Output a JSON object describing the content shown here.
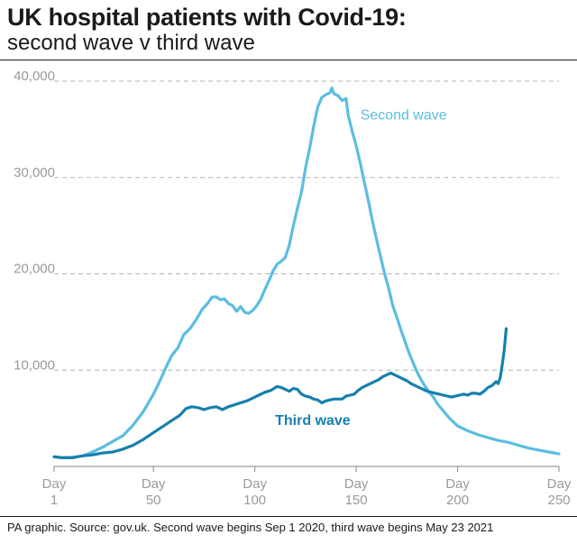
{
  "title": "UK hospital patients with Covid-19:",
  "subtitle": "second wave v third wave",
  "footnote": "PA graphic. Source: gov.uk. Second wave begins Sep 1 2020, third wave begins May 23 2021",
  "colors": {
    "second_wave": "#5bbde0",
    "third_wave": "#1680ad",
    "grid": "#b5b5b5",
    "axis": "#9a9a9a"
  },
  "chart_data": {
    "type": "line",
    "title": "UK hospital patients with Covid-19:",
    "subtitle": "second wave v third wave",
    "xlabel": "",
    "ylabel": "",
    "xlim": [
      1,
      250
    ],
    "ylim": [
      0,
      40000
    ],
    "grid": "horizontal dashed",
    "y_ticks": [
      {
        "value": 10000,
        "label": "10,000"
      },
      {
        "value": 20000,
        "label": "20,000"
      },
      {
        "value": 30000,
        "label": "30,000"
      },
      {
        "value": 40000,
        "label": "40,000"
      }
    ],
    "x_ticks": [
      {
        "value": 1,
        "line1": "Day",
        "line2": "1"
      },
      {
        "value": 50,
        "line1": "Day",
        "line2": "50"
      },
      {
        "value": 100,
        "line1": "Day",
        "line2": "100"
      },
      {
        "value": 150,
        "line1": "Day",
        "line2": "150"
      },
      {
        "value": 200,
        "line1": "Day",
        "line2": "200"
      },
      {
        "value": 250,
        "line1": "Day",
        "line2": "250"
      }
    ],
    "series": [
      {
        "name": "Second wave",
        "label_at": [
          152,
          36000
        ],
        "points": [
          [
            1,
            1000
          ],
          [
            5,
            900
          ],
          [
            10,
            950
          ],
          [
            15,
            1100
          ],
          [
            20,
            1500
          ],
          [
            25,
            2000
          ],
          [
            30,
            2600
          ],
          [
            35,
            3200
          ],
          [
            40,
            4300
          ],
          [
            45,
            5700
          ],
          [
            50,
            7500
          ],
          [
            53,
            8800
          ],
          [
            56,
            10200
          ],
          [
            59,
            11500
          ],
          [
            62,
            12300
          ],
          [
            65,
            13700
          ],
          [
            68,
            14300
          ],
          [
            71,
            15200
          ],
          [
            74,
            16300
          ],
          [
            77,
            17000
          ],
          [
            79,
            17600
          ],
          [
            81,
            17600
          ],
          [
            83,
            17300
          ],
          [
            85,
            17400
          ],
          [
            87,
            16900
          ],
          [
            89,
            16700
          ],
          [
            91,
            16100
          ],
          [
            93,
            16600
          ],
          [
            95,
            16000
          ],
          [
            97,
            15900
          ],
          [
            99,
            16200
          ],
          [
            101,
            16700
          ],
          [
            103,
            17400
          ],
          [
            105,
            18400
          ],
          [
            107,
            19300
          ],
          [
            109,
            20300
          ],
          [
            111,
            21000
          ],
          [
            113,
            21300
          ],
          [
            115,
            21700
          ],
          [
            117,
            23000
          ],
          [
            119,
            25000
          ],
          [
            121,
            26800
          ],
          [
            123,
            28500
          ],
          [
            125,
            31000
          ],
          [
            127,
            33000
          ],
          [
            129,
            35300
          ],
          [
            131,
            37300
          ],
          [
            133,
            38300
          ],
          [
            135,
            38600
          ],
          [
            137,
            38800
          ],
          [
            138,
            39300
          ],
          [
            139,
            38700
          ],
          [
            141,
            38500
          ],
          [
            143,
            38000
          ],
          [
            145,
            38200
          ],
          [
            146,
            36500
          ],
          [
            148,
            34800
          ],
          [
            150,
            33300
          ],
          [
            152,
            31500
          ],
          [
            154,
            29500
          ],
          [
            156,
            27600
          ],
          [
            158,
            25500
          ],
          [
            160,
            23600
          ],
          [
            162,
            21800
          ],
          [
            164,
            20000
          ],
          [
            166,
            18500
          ],
          [
            168,
            16700
          ],
          [
            170,
            15500
          ],
          [
            172,
            14200
          ],
          [
            174,
            13000
          ],
          [
            176,
            11800
          ],
          [
            178,
            10800
          ],
          [
            180,
            9800
          ],
          [
            182,
            9000
          ],
          [
            184,
            8300
          ],
          [
            186,
            7700
          ],
          [
            188,
            7200
          ],
          [
            190,
            6500
          ],
          [
            192,
            6000
          ],
          [
            194,
            5500
          ],
          [
            196,
            5000
          ],
          [
            198,
            4600
          ],
          [
            200,
            4200
          ],
          [
            205,
            3700
          ],
          [
            210,
            3300
          ],
          [
            215,
            3000
          ],
          [
            220,
            2700
          ],
          [
            225,
            2500
          ],
          [
            230,
            2200
          ],
          [
            235,
            1900
          ],
          [
            240,
            1700
          ],
          [
            245,
            1500
          ],
          [
            250,
            1300
          ]
        ]
      },
      {
        "name": "Third wave",
        "label_at": [
          110,
          4300
        ],
        "points": [
          [
            1,
            1000
          ],
          [
            5,
            900
          ],
          [
            10,
            900
          ],
          [
            15,
            1100
          ],
          [
            20,
            1200
          ],
          [
            25,
            1400
          ],
          [
            30,
            1500
          ],
          [
            35,
            1800
          ],
          [
            40,
            2200
          ],
          [
            45,
            2800
          ],
          [
            50,
            3500
          ],
          [
            55,
            4200
          ],
          [
            60,
            4900
          ],
          [
            63,
            5300
          ],
          [
            66,
            6000
          ],
          [
            69,
            6200
          ],
          [
            72,
            6100
          ],
          [
            75,
            5900
          ],
          [
            78,
            6100
          ],
          [
            81,
            6200
          ],
          [
            84,
            5900
          ],
          [
            87,
            6200
          ],
          [
            90,
            6400
          ],
          [
            93,
            6600
          ],
          [
            96,
            6800
          ],
          [
            99,
            7100
          ],
          [
            102,
            7400
          ],
          [
            105,
            7700
          ],
          [
            108,
            7900
          ],
          [
            111,
            8300
          ],
          [
            113,
            8200
          ],
          [
            115,
            8000
          ],
          [
            117,
            7800
          ],
          [
            119,
            8100
          ],
          [
            121,
            8000
          ],
          [
            123,
            7500
          ],
          [
            125,
            7300
          ],
          [
            127,
            7200
          ],
          [
            129,
            7000
          ],
          [
            131,
            6900
          ],
          [
            133,
            6600
          ],
          [
            135,
            6800
          ],
          [
            137,
            6900
          ],
          [
            139,
            7000
          ],
          [
            141,
            7000
          ],
          [
            143,
            7000
          ],
          [
            145,
            7300
          ],
          [
            147,
            7400
          ],
          [
            149,
            7500
          ],
          [
            151,
            7900
          ],
          [
            153,
            8200
          ],
          [
            155,
            8400
          ],
          [
            157,
            8600
          ],
          [
            159,
            8800
          ],
          [
            161,
            9000
          ],
          [
            163,
            9300
          ],
          [
            165,
            9500
          ],
          [
            167,
            9700
          ],
          [
            169,
            9500
          ],
          [
            171,
            9300
          ],
          [
            173,
            9100
          ],
          [
            175,
            8900
          ],
          [
            177,
            8600
          ],
          [
            179,
            8400
          ],
          [
            181,
            8200
          ],
          [
            183,
            8000
          ],
          [
            185,
            7800
          ],
          [
            187,
            7700
          ],
          [
            189,
            7600
          ],
          [
            191,
            7500
          ],
          [
            193,
            7400
          ],
          [
            195,
            7300
          ],
          [
            197,
            7200
          ],
          [
            199,
            7300
          ],
          [
            201,
            7400
          ],
          [
            203,
            7500
          ],
          [
            205,
            7400
          ],
          [
            207,
            7600
          ],
          [
            209,
            7600
          ],
          [
            211,
            7500
          ],
          [
            213,
            7800
          ],
          [
            215,
            8200
          ],
          [
            217,
            8400
          ],
          [
            219,
            8800
          ],
          [
            220,
            8600
          ],
          [
            221,
            9200
          ],
          [
            222,
            10500
          ],
          [
            223,
            12100
          ],
          [
            224,
            14300
          ]
        ]
      }
    ]
  }
}
